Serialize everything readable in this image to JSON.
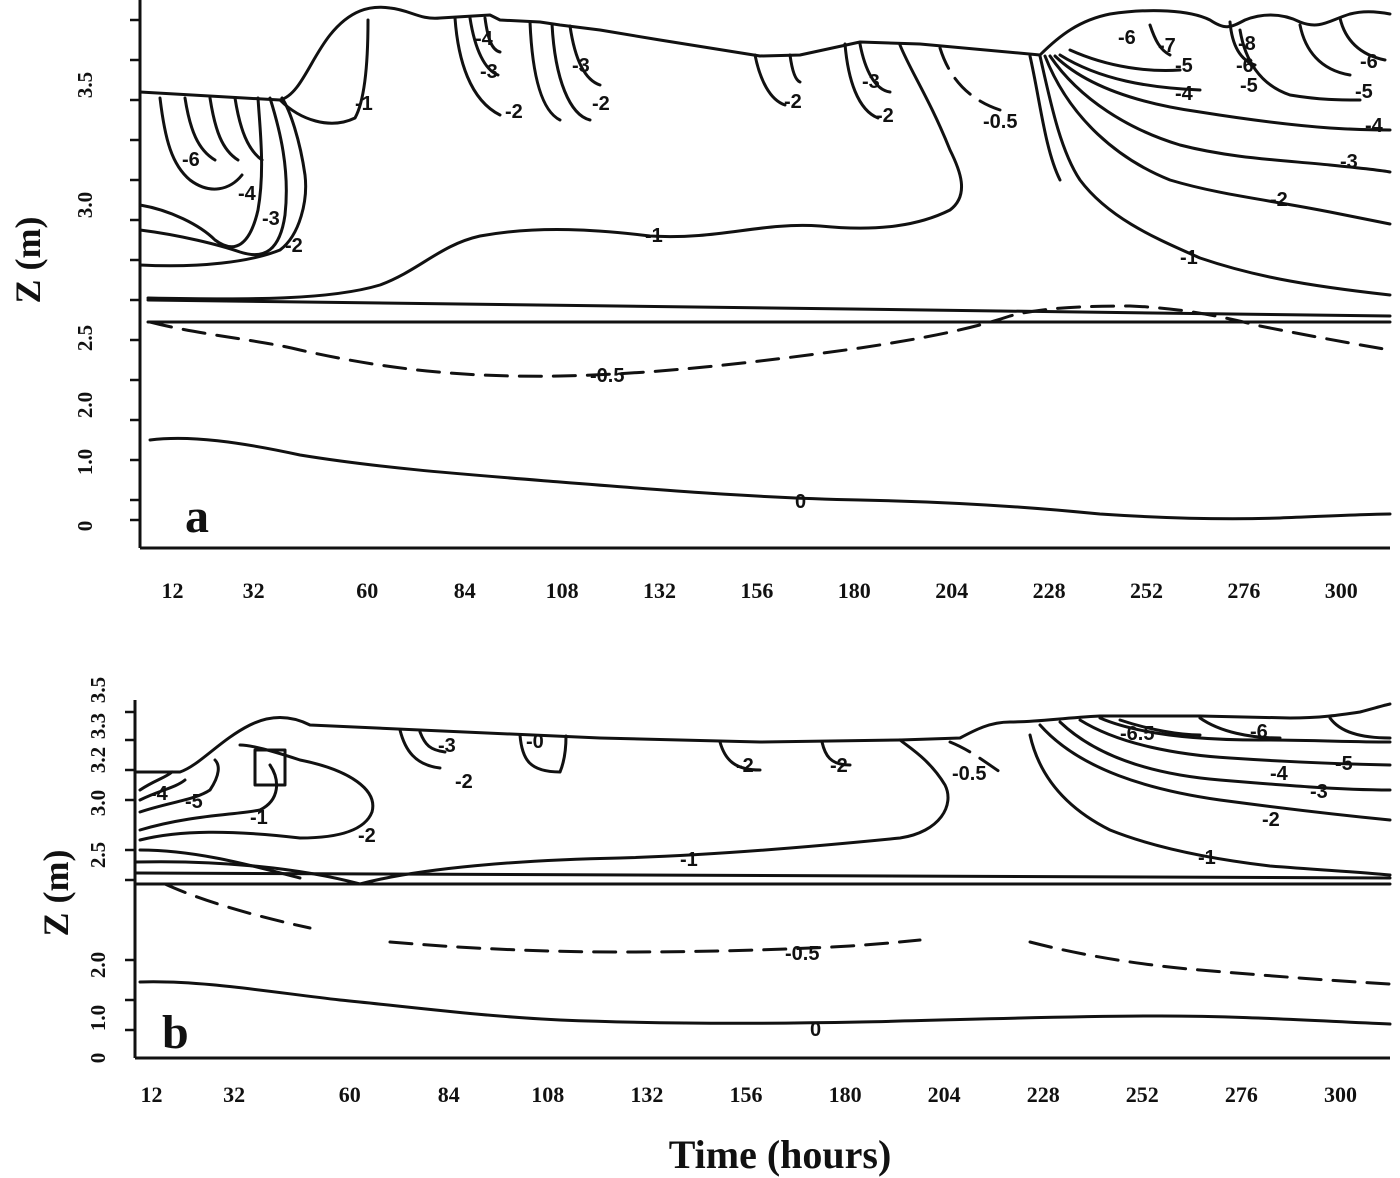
{
  "chart_data": [
    {
      "type": "line",
      "panel_label": "a",
      "xlabel": "",
      "ylabel": "Z (m)",
      "x_ticks": [
        12,
        32,
        60,
        84,
        108,
        132,
        156,
        180,
        204,
        228,
        252,
        276,
        300
      ],
      "y_tick_labels": [
        "0",
        "1.0",
        "2.0",
        "2.5",
        "3.0",
        "3.5"
      ],
      "contour_labels": [
        "-1",
        "-4",
        "-3",
        "-2",
        "-3",
        "-2",
        "-2",
        "-3",
        "-2",
        "-0.5",
        "-6",
        "-7",
        "-5",
        "-8",
        "-6",
        "-5",
        "-4",
        "-6",
        "-5",
        "-4",
        "-3",
        "-2",
        "-3",
        "-6",
        "-4",
        "-2",
        "-1",
        "-1",
        "-0.5",
        "0"
      ],
      "series": [
        {
          "name": "0",
          "x": [
            12,
            40,
            80,
            130,
            180,
            230,
            260,
            300,
            310
          ],
          "y": [
            1.35,
            1.25,
            1.05,
            0.85,
            0.55,
            0.25,
            0.05,
            0.05,
            0.05
          ]
        },
        {
          "name": "-0.5",
          "x": [
            12,
            40,
            84,
            132,
            180,
            220,
            260,
            300,
            310
          ],
          "y": [
            2.5,
            2.3,
            2.12,
            2.14,
            2.28,
            2.45,
            2.5,
            2.38,
            2.34
          ]
        },
        {
          "name": "-1",
          "x": [
            12,
            40,
            70,
            100,
            130,
            160,
            190,
            205,
            210,
            228,
            252,
            280,
            310
          ],
          "y": [
            2.75,
            2.75,
            2.9,
            3.02,
            3.04,
            3.08,
            3.08,
            3.15,
            3.6,
            3.2,
            2.9,
            2.75,
            2.7
          ]
        }
      ]
    },
    {
      "type": "line",
      "panel_label": "b",
      "xlabel": "Time (hours)",
      "ylabel": "Z (m)",
      "x_ticks": [
        12,
        32,
        60,
        84,
        108,
        132,
        156,
        180,
        204,
        228,
        252,
        276,
        300
      ],
      "y_tick_labels": [
        "0",
        "1.0",
        "2.0",
        "2.5",
        "3.0",
        "3.2",
        "3.3",
        "3.5"
      ],
      "contour_labels": [
        "-5",
        "-4",
        "-1",
        "-2",
        "-3",
        "-2",
        "-0",
        "-2",
        "-2",
        "-0.5",
        "-6.5",
        "-6",
        "-5",
        "-4",
        "-3",
        "-2",
        "-1",
        "-1",
        "-0.5",
        "0"
      ],
      "series": [
        {
          "name": "0",
          "x": [
            12,
            40,
            80,
            108,
            156,
            204,
            252,
            300,
            310
          ],
          "y": [
            1.3,
            1.15,
            0.9,
            0.75,
            0.72,
            0.72,
            0.78,
            0.6,
            0.55
          ]
        },
        {
          "name": "-0.5",
          "x": [
            12,
            50,
            84,
            132,
            180,
            228,
            276,
            310
          ],
          "y": [
            2.5,
            2.15,
            1.95,
            1.95,
            2.0,
            1.95,
            1.55,
            1.45
          ]
        },
        {
          "name": "-1",
          "x": [
            12,
            60,
            100,
            150,
            190,
            200,
            204,
            240,
            280,
            310
          ],
          "y": [
            2.55,
            2.5,
            2.62,
            2.7,
            2.78,
            3.2,
            3.22,
            2.85,
            2.65,
            2.6
          ]
        }
      ]
    }
  ]
}
